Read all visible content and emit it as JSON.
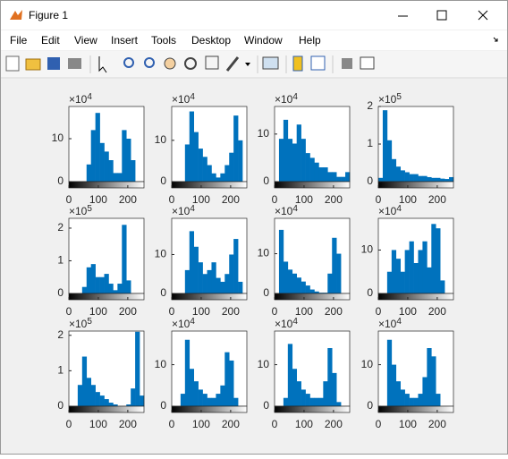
{
  "window": {
    "title": "Figure 1",
    "menu": [
      "File",
      "Edit",
      "View",
      "Insert",
      "Tools",
      "Desktop",
      "Window",
      "Help"
    ]
  },
  "chart_data": [
    {
      "type": "histogram",
      "y_multiplier": "×10",
      "y_exponent": "4",
      "color": "#0072bd",
      "xlim": [
        0,
        255
      ],
      "xticks": [
        0,
        100,
        200
      ],
      "ylim": [
        0,
        17.5
      ],
      "yticks": [
        0,
        10
      ],
      "bins": [
        0,
        15,
        30,
        45,
        60,
        75,
        90,
        105,
        120,
        135,
        150,
        165,
        180,
        195,
        210,
        225,
        240,
        255
      ],
      "values": [
        0,
        0,
        0,
        0,
        4,
        12,
        16,
        9,
        7,
        5,
        2,
        2,
        12,
        10,
        5,
        0,
        0
      ]
    },
    {
      "type": "histogram",
      "y_multiplier": "×10",
      "y_exponent": "4",
      "color": "#0072bd",
      "xlim": [
        0,
        255
      ],
      "xticks": [
        0,
        100,
        200
      ],
      "ylim": [
        0,
        18.2
      ],
      "yticks": [
        0,
        10
      ],
      "bins": [
        0,
        15,
        30,
        45,
        60,
        75,
        90,
        105,
        120,
        135,
        150,
        165,
        180,
        195,
        210,
        225,
        240,
        255
      ],
      "values": [
        0,
        0,
        0,
        9,
        17,
        12,
        8,
        6,
        4,
        2,
        1,
        2,
        4,
        7,
        16,
        10,
        0
      ]
    },
    {
      "type": "histogram",
      "y_multiplier": "×10",
      "y_exponent": "4",
      "color": "#0072bd",
      "xlim": [
        0,
        255
      ],
      "xticks": [
        0,
        100,
        200
      ],
      "ylim": [
        0,
        15.8
      ],
      "yticks": [
        0,
        10
      ],
      "bins": [
        0,
        15,
        30,
        45,
        60,
        75,
        90,
        105,
        120,
        135,
        150,
        165,
        180,
        195,
        210,
        225,
        240,
        255
      ],
      "values": [
        0,
        9,
        13,
        9,
        8,
        12,
        9,
        6,
        5,
        4,
        3,
        3,
        2,
        2,
        1,
        1,
        2
      ]
    },
    {
      "type": "histogram",
      "y_multiplier": "×10",
      "y_exponent": "5",
      "color": "#0072bd",
      "xlim": [
        0,
        255
      ],
      "xticks": [
        0,
        100,
        200
      ],
      "ylim": [
        0,
        2
      ],
      "yticks": [
        0,
        1,
        2
      ],
      "bins": [
        0,
        15,
        30,
        45,
        60,
        75,
        90,
        105,
        120,
        135,
        150,
        165,
        180,
        195,
        210,
        225,
        240,
        255
      ],
      "values": [
        0.1,
        1.9,
        1.1,
        0.6,
        0.4,
        0.3,
        0.25,
        0.2,
        0.2,
        0.15,
        0.15,
        0.12,
        0.1,
        0.1,
        0.08,
        0.07,
        0.12
      ]
    },
    {
      "type": "histogram",
      "y_multiplier": "×10",
      "y_exponent": "5",
      "color": "#0072bd",
      "xlim": [
        0,
        255
      ],
      "xticks": [
        0,
        100,
        200
      ],
      "ylim": [
        0,
        2.3
      ],
      "yticks": [
        0,
        1,
        2
      ],
      "bins": [
        0,
        15,
        30,
        45,
        60,
        75,
        90,
        105,
        120,
        135,
        150,
        165,
        180,
        195,
        210,
        225,
        240,
        255
      ],
      "values": [
        0,
        0,
        0,
        0.2,
        0.8,
        0.9,
        0.5,
        0.5,
        0.6,
        0.3,
        0.1,
        0.3,
        2.1,
        0.4,
        0,
        0,
        0
      ]
    },
    {
      "type": "histogram",
      "y_multiplier": "×10",
      "y_exponent": "4",
      "color": "#0072bd",
      "xlim": [
        0,
        255
      ],
      "xticks": [
        0,
        100,
        200
      ],
      "ylim": [
        0,
        19.3
      ],
      "yticks": [
        0,
        10
      ],
      "bins": [
        0,
        15,
        30,
        45,
        60,
        75,
        90,
        105,
        120,
        135,
        150,
        165,
        180,
        195,
        210,
        225,
        240,
        255
      ],
      "values": [
        0,
        0,
        0,
        6,
        16,
        12,
        8,
        5,
        6,
        8,
        4,
        3,
        5,
        10,
        14,
        3,
        0
      ]
    },
    {
      "type": "histogram",
      "y_multiplier": "×10",
      "y_exponent": "4",
      "color": "#0072bd",
      "xlim": [
        0,
        255
      ],
      "xticks": [
        0,
        100,
        200
      ],
      "ylim": [
        0,
        18.9
      ],
      "yticks": [
        0,
        10
      ],
      "bins": [
        0,
        15,
        30,
        45,
        60,
        75,
        90,
        105,
        120,
        135,
        150,
        165,
        180,
        195,
        210,
        225,
        240,
        255
      ],
      "values": [
        0,
        16,
        8,
        6,
        5,
        4,
        3,
        2,
        1,
        0.5,
        0.2,
        0.2,
        5,
        14,
        10,
        0,
        0
      ]
    },
    {
      "type": "histogram",
      "y_multiplier": "×10",
      "y_exponent": "4",
      "color": "#0072bd",
      "xlim": [
        0,
        255
      ],
      "xticks": [
        0,
        100,
        200
      ],
      "ylim": [
        0,
        17.3
      ],
      "yticks": [
        0,
        10
      ],
      "bins": [
        0,
        15,
        30,
        45,
        60,
        75,
        90,
        105,
        120,
        135,
        150,
        165,
        180,
        195,
        210,
        225,
        240,
        255
      ],
      "values": [
        0,
        0,
        5,
        10,
        8,
        5,
        10,
        12,
        7,
        10,
        12,
        6,
        16,
        15,
        3,
        0,
        0
      ]
    },
    {
      "type": "histogram",
      "y_multiplier": "×10",
      "y_exponent": "5",
      "color": "#0072bd",
      "xlim": [
        0,
        255
      ],
      "xticks": [
        0,
        100,
        200
      ],
      "ylim": [
        0,
        2.12
      ],
      "yticks": [
        0,
        1,
        2
      ],
      "bins": [
        0,
        15,
        30,
        45,
        60,
        75,
        90,
        105,
        120,
        135,
        150,
        165,
        180,
        195,
        210,
        225,
        240,
        255
      ],
      "values": [
        0,
        0,
        0.6,
        1.4,
        0.8,
        0.6,
        0.4,
        0.3,
        0.2,
        0.1,
        0.05,
        0,
        0,
        0.05,
        0.5,
        2.1,
        0.3
      ]
    },
    {
      "type": "histogram",
      "y_multiplier": "×10",
      "y_exponent": "4",
      "color": "#0072bd",
      "xlim": [
        0,
        255
      ],
      "xticks": [
        0,
        100,
        200
      ],
      "ylim": [
        0,
        18.1
      ],
      "yticks": [
        0,
        10
      ],
      "bins": [
        0,
        15,
        30,
        45,
        60,
        75,
        90,
        105,
        120,
        135,
        150,
        165,
        180,
        195,
        210,
        225,
        240,
        255
      ],
      "values": [
        0,
        0,
        3,
        16,
        9,
        6,
        4,
        3,
        2,
        2,
        3,
        5,
        13,
        11,
        2,
        0,
        0
      ]
    },
    {
      "type": "histogram",
      "y_multiplier": "×10",
      "y_exponent": "4",
      "color": "#0072bd",
      "xlim": [
        0,
        255
      ],
      "xticks": [
        0,
        100,
        200
      ],
      "ylim": [
        0,
        18.1
      ],
      "yticks": [
        0,
        10
      ],
      "bins": [
        0,
        15,
        30,
        45,
        60,
        75,
        90,
        105,
        120,
        135,
        150,
        165,
        180,
        195,
        210,
        225,
        240,
        255
      ],
      "values": [
        0,
        0,
        2,
        15,
        9,
        6,
        4,
        3,
        2,
        2,
        2,
        6,
        14,
        8,
        1,
        0,
        0
      ]
    },
    {
      "type": "histogram",
      "y_multiplier": "×10",
      "y_exponent": "4",
      "color": "#0072bd",
      "xlim": [
        0,
        255
      ],
      "xticks": [
        0,
        100,
        200
      ],
      "ylim": [
        0,
        18.1
      ],
      "yticks": [
        0,
        10
      ],
      "bins": [
        0,
        15,
        30,
        45,
        60,
        75,
        90,
        105,
        120,
        135,
        150,
        165,
        180,
        195,
        210,
        225,
        240,
        255
      ],
      "values": [
        0,
        0,
        16,
        10,
        6,
        4,
        3,
        2,
        2,
        3,
        7,
        14,
        12,
        3,
        0,
        0,
        0
      ]
    }
  ]
}
